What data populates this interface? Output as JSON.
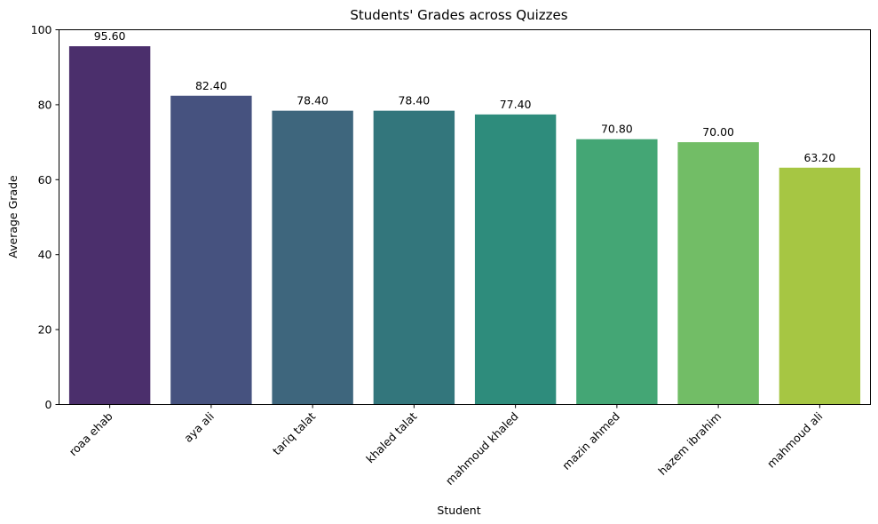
{
  "chart_data": {
    "type": "bar",
    "title": "Students' Grades across Quizzes",
    "xlabel": "Student",
    "ylabel": "Average Grade",
    "ylim": [
      0,
      100
    ],
    "yticks": [
      0,
      20,
      40,
      60,
      80,
      100
    ],
    "grid": false,
    "legend": "none",
    "categories": [
      "roaa ehab",
      "aya ali",
      "tariq talat",
      "khaled talat",
      "mahmoud khaled",
      "mazin ahmed",
      "hazem ibrahim",
      "mahmoud ali"
    ],
    "values": [
      95.6,
      82.4,
      78.4,
      78.4,
      77.4,
      70.8,
      70.0,
      63.2
    ],
    "value_labels": [
      "95.60",
      "82.40",
      "78.40",
      "78.40",
      "77.40",
      "70.80",
      "70.00",
      "63.20"
    ],
    "colors": [
      "#4b2f6c",
      "#46527f",
      "#3e667d",
      "#33767c",
      "#2e8c7c",
      "#44a675",
      "#72bd66",
      "#a6c643"
    ]
  }
}
